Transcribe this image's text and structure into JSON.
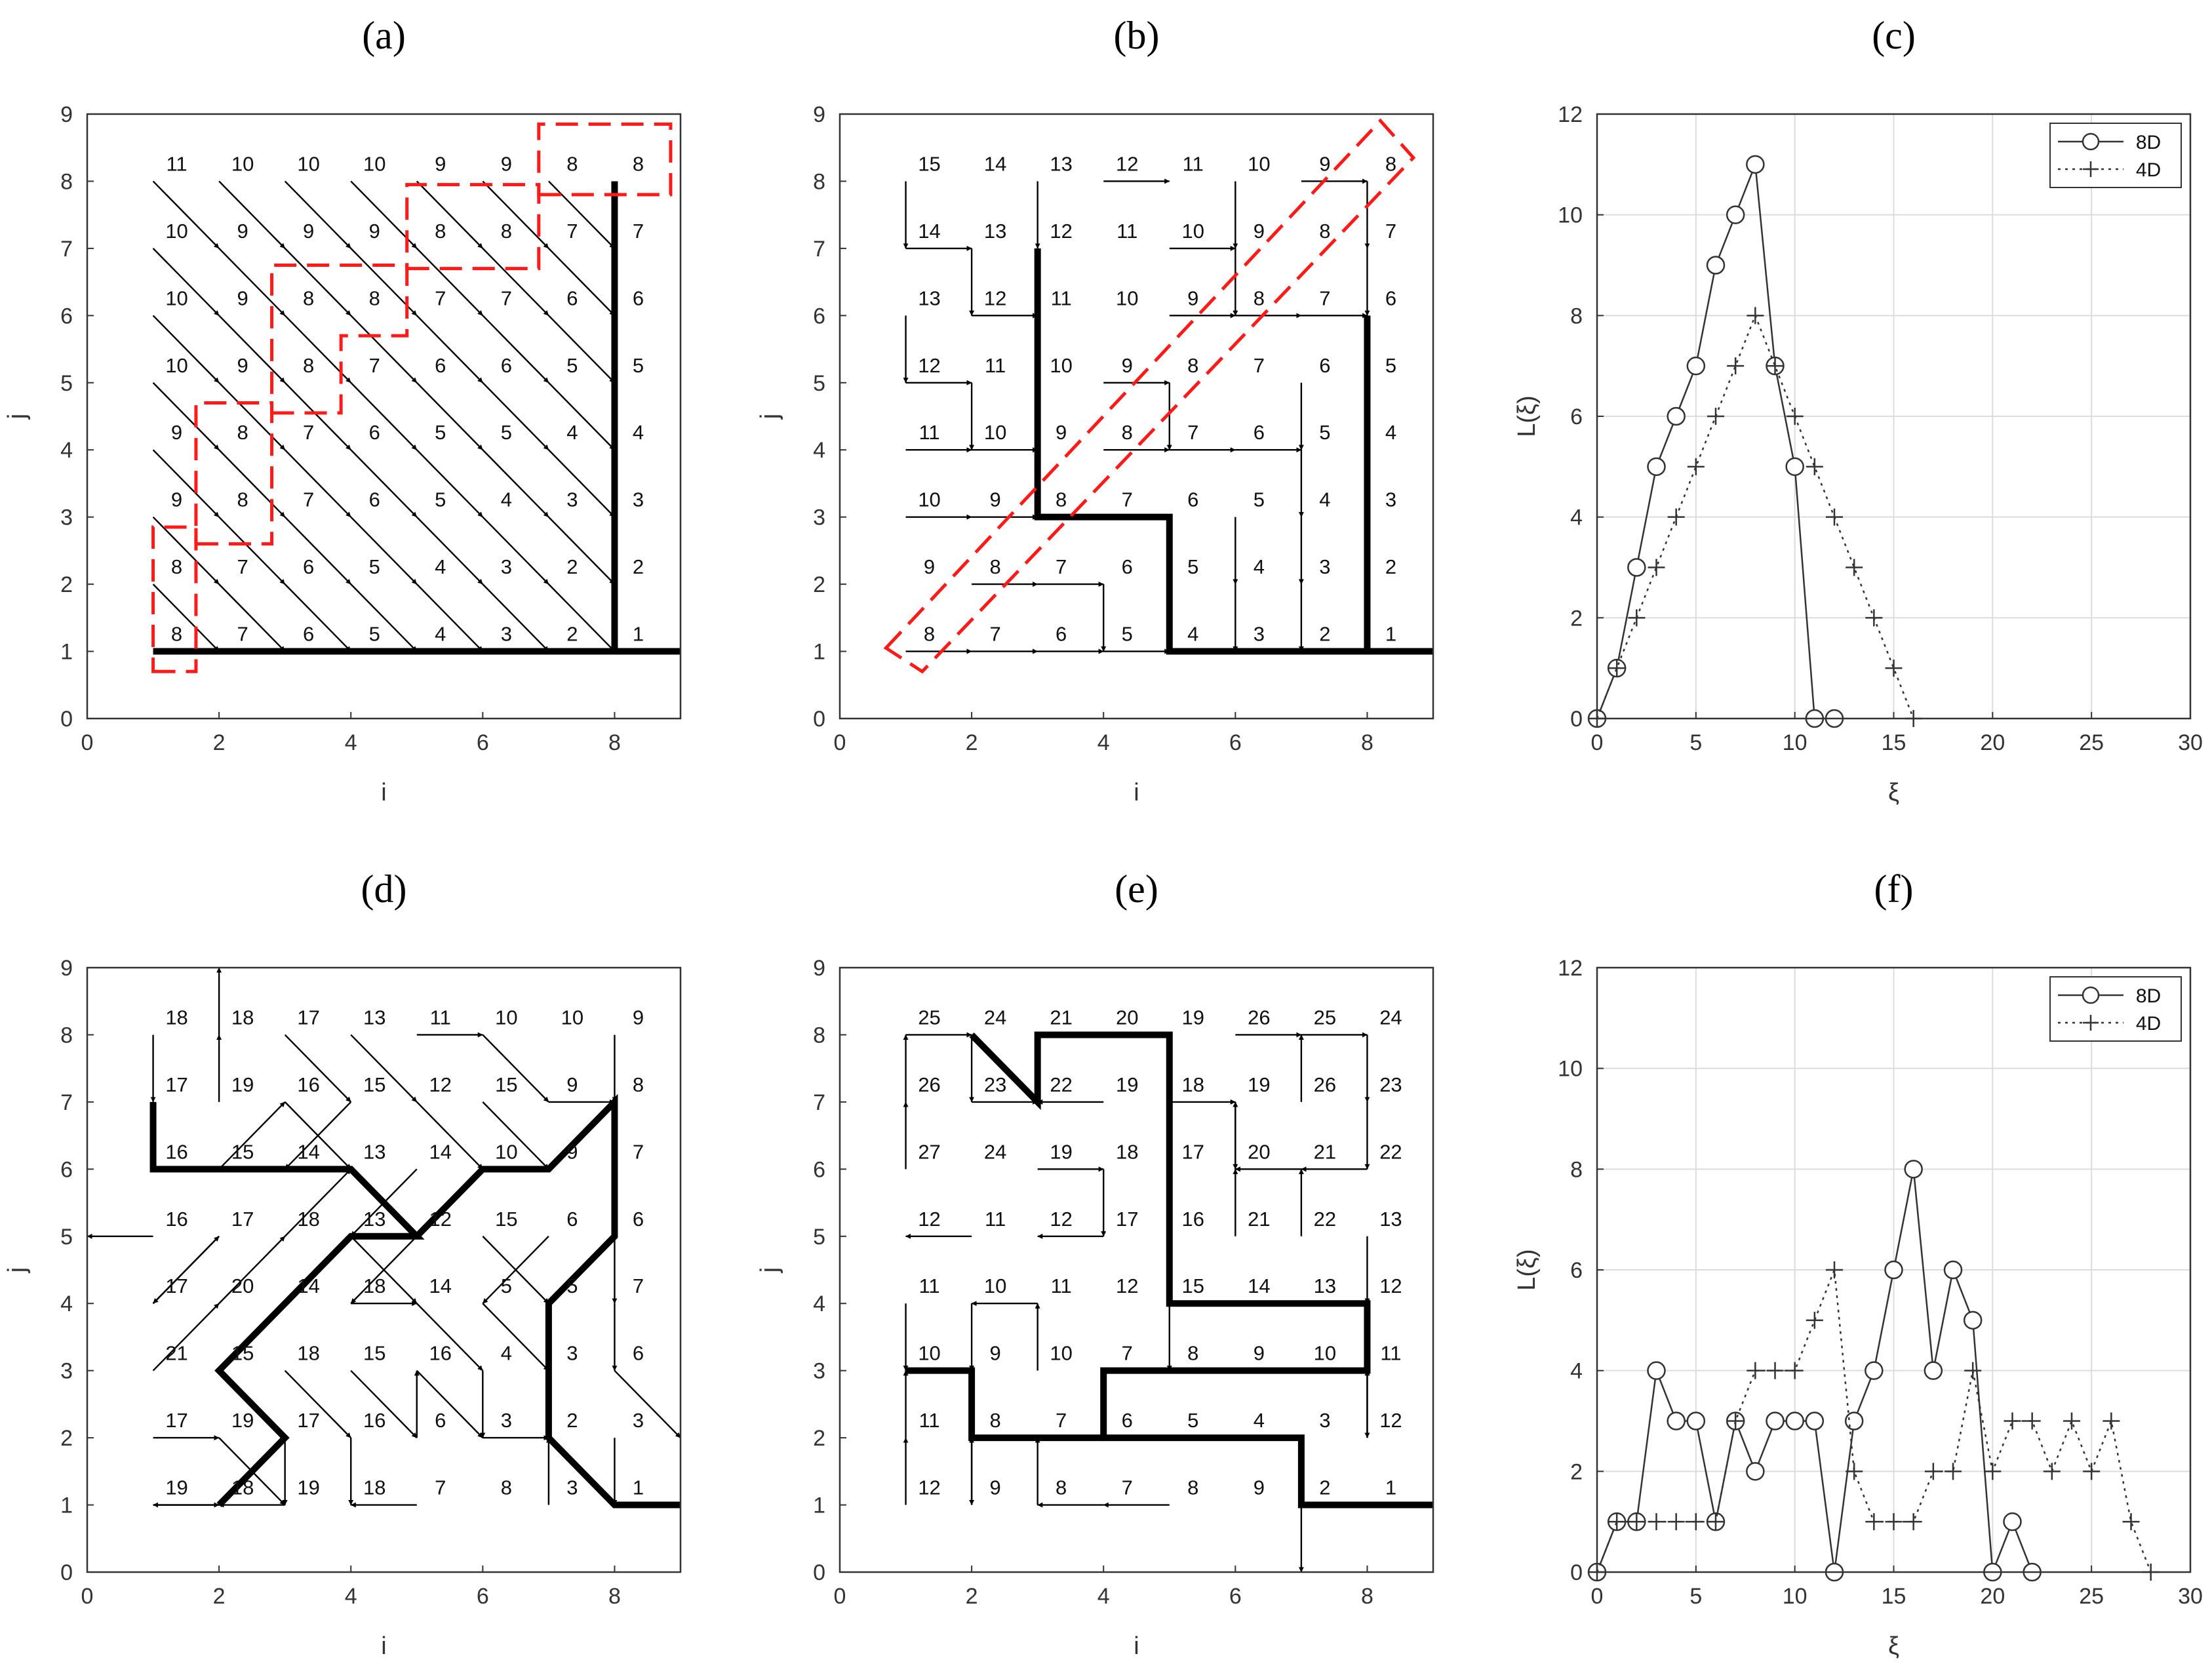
{
  "chart_data": [
    {
      "id": "a",
      "type": "flow-grid",
      "label": "(a)",
      "xlabel": "i",
      "ylabel": "j",
      "xlim": [
        0,
        9
      ],
      "ylim": [
        0,
        9
      ],
      "xticks": [
        "0",
        "2",
        "4",
        "6",
        "8"
      ],
      "yticks": [
        "0",
        "1",
        "2",
        "3",
        "4",
        "5",
        "6",
        "7",
        "8",
        "9"
      ],
      "values": [
        [
          11,
          10,
          10,
          10,
          9,
          9,
          8,
          8
        ],
        [
          10,
          9,
          9,
          9,
          8,
          8,
          7,
          7
        ],
        [
          10,
          9,
          8,
          8,
          7,
          7,
          6,
          6
        ],
        [
          10,
          9,
          8,
          7,
          6,
          6,
          5,
          5
        ],
        [
          9,
          8,
          7,
          6,
          5,
          5,
          4,
          4
        ],
        [
          9,
          8,
          7,
          6,
          5,
          4,
          3,
          3
        ],
        [
          8,
          7,
          6,
          5,
          4,
          3,
          2,
          2
        ],
        [
          8,
          7,
          6,
          5,
          4,
          3,
          2,
          1
        ]
      ],
      "directions": [
        [
          "SE",
          "SE",
          "SE",
          "SE",
          "SE",
          "SE",
          "SE",
          "S"
        ],
        [
          "SE",
          "SE",
          "SE",
          "SE",
          "SE",
          "SE",
          "SE",
          "S"
        ],
        [
          "SE",
          "SE",
          "SE",
          "SE",
          "SE",
          "SE",
          "SE",
          "S"
        ],
        [
          "SE",
          "SE",
          "SE",
          "SE",
          "SE",
          "SE",
          "SE",
          "S"
        ],
        [
          "SE",
          "SE",
          "SE",
          "SE",
          "SE",
          "SE",
          "SE",
          "S"
        ],
        [
          "SE",
          "SE",
          "SE",
          "SE",
          "SE",
          "SE",
          "SE",
          "S"
        ],
        [
          "SE",
          "SE",
          "SE",
          "SE",
          "SE",
          "SE",
          "SE",
          "S"
        ],
        [
          "E",
          "E",
          "E",
          "E",
          "E",
          "E",
          "E",
          "E"
        ]
      ],
      "main_path": [
        [
          8,
          8
        ],
        [
          8,
          1
        ],
        [
          9,
          1
        ]
      ],
      "main_path_b": [
        [
          1,
          1
        ],
        [
          8,
          1
        ]
      ],
      "dashed_regions": [
        [
          [
            1.0,
            0.7
          ],
          [
            1.65,
            0.7
          ],
          [
            1.65,
            2.85
          ],
          [
            1.0,
            2.85
          ]
        ],
        [
          [
            1.65,
            2.6
          ],
          [
            2.8,
            2.6
          ],
          [
            2.8,
            4.7
          ],
          [
            1.65,
            4.7
          ]
        ],
        [
          [
            2.8,
            4.55
          ],
          [
            3.85,
            4.55
          ],
          [
            3.85,
            5.7
          ],
          [
            4.85,
            5.7
          ],
          [
            4.85,
            6.75
          ],
          [
            2.8,
            6.75
          ]
        ],
        [
          [
            4.85,
            6.7
          ],
          [
            6.85,
            6.7
          ],
          [
            6.85,
            7.95
          ],
          [
            4.85,
            7.95
          ]
        ],
        [
          [
            6.85,
            7.8
          ],
          [
            8.85,
            7.8
          ],
          [
            8.85,
            8.85
          ],
          [
            6.85,
            8.85
          ]
        ]
      ],
      "colors": {
        "dashed": "#ff1a1a"
      }
    },
    {
      "id": "b",
      "type": "flow-grid",
      "label": "(b)",
      "xlabel": "i",
      "ylabel": "j",
      "xlim": [
        0,
        9
      ],
      "ylim": [
        0,
        9
      ],
      "xticks": [
        "0",
        "2",
        "4",
        "6",
        "8"
      ],
      "yticks": [
        "0",
        "1",
        "2",
        "3",
        "4",
        "5",
        "6",
        "7",
        "8",
        "9"
      ],
      "values": [
        [
          15,
          14,
          13,
          12,
          11,
          10,
          9,
          8
        ],
        [
          14,
          13,
          12,
          11,
          10,
          9,
          8,
          7
        ],
        [
          13,
          12,
          11,
          10,
          9,
          8,
          7,
          6
        ],
        [
          12,
          11,
          10,
          9,
          8,
          7,
          6,
          5
        ],
        [
          11,
          10,
          9,
          8,
          7,
          6,
          5,
          4
        ],
        [
          10,
          9,
          8,
          7,
          6,
          5,
          4,
          3
        ],
        [
          9,
          8,
          7,
          6,
          5,
          4,
          3,
          2
        ],
        [
          8,
          7,
          6,
          5,
          4,
          3,
          2,
          1
        ]
      ],
      "directions": [
        [
          "S",
          "",
          "S",
          "E",
          "",
          "S",
          "E",
          "S"
        ],
        [
          "E",
          "S",
          "S",
          "",
          "E",
          "S",
          "",
          "S"
        ],
        [
          "S",
          "E",
          "S",
          "",
          "E",
          "E",
          "E",
          "S"
        ],
        [
          "E",
          "S",
          "S",
          "E",
          "S",
          "",
          "S",
          "S"
        ],
        [
          "E",
          "E",
          "S",
          "E",
          "E",
          "E",
          "S",
          "S"
        ],
        [
          "E",
          "E",
          "E",
          "E",
          "S",
          "S",
          "S",
          "S"
        ],
        [
          "",
          "E",
          "E",
          "S",
          "S",
          "S",
          "S",
          "S"
        ],
        [
          "E",
          "E",
          "E",
          "E",
          "E",
          "E",
          "E",
          "E"
        ]
      ],
      "main_path": [
        [
          3,
          7
        ],
        [
          3,
          3
        ],
        [
          5,
          3
        ],
        [
          5,
          1
        ],
        [
          9,
          1
        ]
      ],
      "main_path_b": [
        [
          8,
          6
        ],
        [
          8,
          1
        ]
      ],
      "dashed_regions": [
        [
          [
            0.7,
            1.05
          ],
          [
            8.2,
            8.9
          ],
          [
            8.7,
            8.35
          ],
          [
            1.25,
            0.7
          ]
        ]
      ],
      "colors": {
        "dashed": "#ff1a1a"
      }
    },
    {
      "id": "c",
      "type": "line",
      "label": "(c)",
      "xlabel": "ξ",
      "ylabel": "L(ξ)",
      "xlim": [
        0,
        30
      ],
      "ylim": [
        0,
        12
      ],
      "xticks": [
        "0",
        "5",
        "10",
        "15",
        "20",
        "25",
        "30"
      ],
      "yticks": [
        "0",
        "2",
        "4",
        "6",
        "8",
        "10",
        "12"
      ],
      "legend_position": "top-right",
      "grid": true,
      "series": [
        {
          "name": "8D",
          "marker": "circle",
          "x": [
            0,
            1,
            2,
            3,
            4,
            5,
            6,
            7,
            8,
            9,
            10,
            11,
            12
          ],
          "y": [
            0,
            1,
            3,
            5,
            6,
            7,
            9,
            10,
            11,
            7,
            5,
            0,
            0
          ]
        },
        {
          "name": "4D",
          "marker": "plus",
          "x": [
            0,
            1,
            2,
            3,
            4,
            5,
            6,
            7,
            8,
            9,
            10,
            11,
            12,
            13,
            14,
            15,
            16
          ],
          "y": [
            0,
            1,
            2,
            3,
            4,
            5,
            6,
            7,
            8,
            7,
            6,
            5,
            4,
            3,
            2,
            1,
            0
          ]
        }
      ]
    },
    {
      "id": "d",
      "type": "flow-grid",
      "label": "(d)",
      "xlabel": "i",
      "ylabel": "j",
      "xlim": [
        0,
        9
      ],
      "ylim": [
        0,
        9
      ],
      "xticks": [
        "0",
        "2",
        "4",
        "6",
        "8"
      ],
      "yticks": [
        "0",
        "1",
        "2",
        "3",
        "4",
        "5",
        "6",
        "7",
        "8",
        "9"
      ],
      "values": [
        [
          18,
          18,
          17,
          13,
          11,
          10,
          10,
          9
        ],
        [
          17,
          19,
          16,
          15,
          12,
          15,
          9,
          8
        ],
        [
          16,
          15,
          14,
          13,
          14,
          10,
          9,
          7
        ],
        [
          16,
          17,
          18,
          13,
          12,
          15,
          6,
          6
        ],
        [
          17,
          20,
          14,
          18,
          14,
          5,
          5,
          7
        ],
        [
          21,
          15,
          18,
          15,
          16,
          4,
          3,
          6
        ],
        [
          17,
          19,
          17,
          16,
          6,
          3,
          2,
          3
        ],
        [
          19,
          18,
          19,
          18,
          7,
          8,
          3,
          1
        ]
      ],
      "directions": [
        [
          "S",
          "N",
          "SE",
          "SE",
          "E",
          "SE",
          "",
          "S"
        ],
        [
          "",
          "N",
          "SE",
          "SW",
          "SE",
          "SE",
          "E",
          "S"
        ],
        [
          "E",
          "NE",
          "E",
          "W",
          "SW",
          "E",
          "NE",
          "S"
        ],
        [
          "W",
          "SW",
          "NE",
          "SE",
          "SW",
          "SE",
          "SW",
          "S"
        ],
        [
          "NE",
          "NE",
          "NE",
          "E",
          "SE",
          "SE",
          "NE",
          "S"
        ],
        [
          "NE",
          "NE",
          "SE",
          "SE",
          "SE",
          "S",
          "S",
          "SE"
        ],
        [
          "E",
          "SE",
          "S",
          "S",
          "N",
          "E",
          "SE",
          "S"
        ],
        [
          "E",
          "W",
          "W",
          "",
          "W",
          "",
          "N",
          "E"
        ]
      ],
      "main_path": [
        [
          1,
          7
        ],
        [
          1,
          6
        ],
        [
          3,
          6
        ],
        [
          4,
          6
        ],
        [
          5,
          5
        ],
        [
          4,
          5
        ],
        [
          3,
          4
        ],
        [
          2,
          3
        ],
        [
          3,
          2
        ],
        [
          2,
          1
        ]
      ],
      "main_path_b": [
        [
          5,
          5
        ],
        [
          6,
          6
        ],
        [
          7,
          6
        ],
        [
          8,
          7
        ],
        [
          8,
          5
        ],
        [
          7,
          4
        ],
        [
          7,
          2
        ],
        [
          8,
          1
        ],
        [
          9,
          1
        ]
      ],
      "dashed_regions": []
    },
    {
      "id": "e",
      "type": "flow-grid",
      "label": "(e)",
      "xlabel": "i",
      "ylabel": "j",
      "xlim": [
        0,
        9
      ],
      "ylim": [
        0,
        9
      ],
      "xticks": [
        "0",
        "2",
        "4",
        "6",
        "8"
      ],
      "yticks": [
        "0",
        "1",
        "2",
        "3",
        "4",
        "5",
        "6",
        "7",
        "8",
        "9"
      ],
      "values": [
        [
          25,
          24,
          21,
          20,
          19,
          26,
          25,
          24
        ],
        [
          26,
          23,
          22,
          19,
          18,
          19,
          26,
          23
        ],
        [
          27,
          24,
          19,
          18,
          17,
          20,
          21,
          22
        ],
        [
          12,
          11,
          12,
          17,
          16,
          21,
          22,
          13
        ],
        [
          11,
          10,
          11,
          12,
          15,
          14,
          13,
          12
        ],
        [
          10,
          9,
          10,
          7,
          8,
          9,
          10,
          11
        ],
        [
          11,
          8,
          7,
          6,
          5,
          4,
          3,
          12
        ],
        [
          12,
          9,
          8,
          7,
          8,
          9,
          2,
          1
        ]
      ],
      "directions": [
        [
          "E",
          "S",
          "E",
          "E",
          "",
          "E",
          "E",
          "S"
        ],
        [
          "N",
          "E",
          "",
          "W",
          "E",
          "S",
          "N",
          "S"
        ],
        [
          "N",
          "",
          "E",
          "S",
          "S",
          "N",
          "W",
          "W"
        ],
        [
          "",
          "W",
          "",
          "W",
          "S",
          "N",
          "N",
          "S"
        ],
        [
          "S",
          "S",
          "W",
          "",
          "S",
          "E",
          "E",
          "S"
        ],
        [
          "E",
          "W",
          "N",
          "E",
          "E",
          "E",
          "E",
          "S"
        ],
        [
          "N",
          "S",
          "",
          "N",
          "E",
          "E",
          "",
          "N"
        ],
        [
          "N",
          "N",
          "N",
          "W",
          "W",
          "",
          "S",
          "E"
        ]
      ],
      "main_path": [
        [
          2,
          8
        ],
        [
          3,
          7
        ],
        [
          3,
          8
        ],
        [
          5,
          8
        ],
        [
          5,
          4
        ],
        [
          8,
          4
        ],
        [
          8,
          3
        ],
        [
          4,
          3
        ],
        [
          4,
          2
        ],
        [
          7,
          2
        ],
        [
          7,
          1
        ],
        [
          9,
          1
        ]
      ],
      "main_path_b": [
        [
          1,
          3
        ],
        [
          2,
          3
        ],
        [
          2,
          2
        ],
        [
          4,
          2
        ]
      ],
      "dashed_regions": []
    },
    {
      "id": "f",
      "type": "line",
      "label": "(f)",
      "xlabel": "ξ",
      "ylabel": "L(ξ)",
      "xlim": [
        0,
        30
      ],
      "ylim": [
        0,
        12
      ],
      "xticks": [
        "0",
        "5",
        "10",
        "15",
        "20",
        "25",
        "30"
      ],
      "yticks": [
        "0",
        "2",
        "4",
        "6",
        "8",
        "10",
        "12"
      ],
      "legend_position": "top-right",
      "grid": true,
      "series": [
        {
          "name": "8D",
          "marker": "circle",
          "x": [
            0,
            1,
            2,
            3,
            4,
            5,
            6,
            7,
            8,
            9,
            10,
            11,
            12,
            13,
            14,
            15,
            16,
            17,
            18,
            19,
            20,
            21,
            22
          ],
          "y": [
            0,
            1,
            1,
            4,
            3,
            3,
            1,
            3,
            2,
            3,
            3,
            3,
            0,
            3,
            4,
            6,
            8,
            4,
            6,
            5,
            0,
            1,
            0
          ]
        },
        {
          "name": "4D",
          "marker": "plus",
          "x": [
            0,
            1,
            2,
            3,
            4,
            5,
            6,
            7,
            8,
            9,
            10,
            11,
            12,
            13,
            14,
            15,
            16,
            17,
            18,
            19,
            20,
            21,
            22,
            23,
            24,
            25,
            26,
            27,
            28
          ],
          "y": [
            0,
            1,
            1,
            1,
            1,
            1,
            1,
            3,
            4,
            4,
            4,
            5,
            6,
            2,
            1,
            1,
            1,
            2,
            2,
            4,
            2,
            3,
            3,
            2,
            3,
            2,
            3,
            1,
            0
          ]
        }
      ]
    }
  ]
}
